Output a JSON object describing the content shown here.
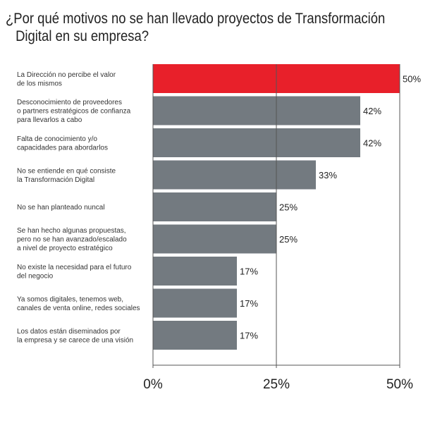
{
  "title_line1": "¿Por qué motivos no se han llevado proyectos de Transformación",
  "title_line2": "Digital en su empresa?",
  "chart_data": {
    "type": "bar",
    "orientation": "horizontal",
    "title": "¿Por qué motivos no se han llevado proyectos de Transformación Digital en su empresa?",
    "categories": [
      [
        "La Dirección no percibe el valor",
        "de los mismos"
      ],
      [
        "Desconocimiento de proveedores",
        "o partners estratégicos de confianza",
        " para llevarlos a cabo"
      ],
      [
        "Falta de conocimiento y/o",
        "capacidades para abordarlos"
      ],
      [
        "No se entiende en qué consiste",
        "la Transformación Digital"
      ],
      [
        "No se han planteado nuncal"
      ],
      [
        "Se han hecho algunas propuestas,",
        "pero no se han avanzado/escalado",
        "a nivel de proyecto estratégico"
      ],
      [
        "No existe la necesidad para el futuro",
        " del negocio"
      ],
      [
        "Ya somos digitales, tenemos web,",
        "canales de venta online, redes sociales"
      ],
      [
        "Los datos están diseminados por",
        "la empresa y se carece de una visión"
      ]
    ],
    "values": [
      50,
      42,
      42,
      33,
      25,
      25,
      17,
      17,
      17
    ],
    "value_labels": [
      "50%",
      "42%",
      "42%",
      "33%",
      "25%",
      "25%",
      "17%",
      "17%",
      "17%"
    ],
    "xlim": [
      0,
      50
    ],
    "xticks": [
      0,
      25,
      50
    ],
    "xtick_labels": [
      "0%",
      "25%",
      "50%"
    ],
    "grid": false,
    "colors": {
      "highlight": "#e8202a",
      "bar": "#737a80",
      "axis": "#555555"
    },
    "highlight_index": 0
  }
}
